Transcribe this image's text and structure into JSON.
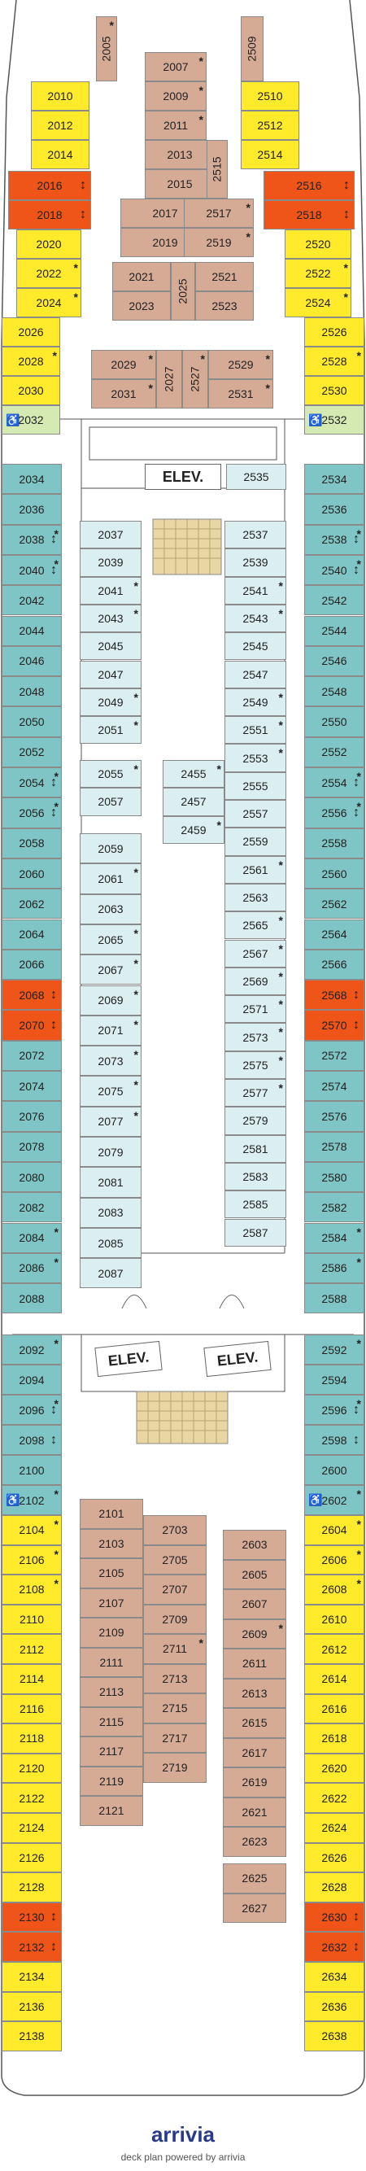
{
  "brand": {
    "name": "arrivia",
    "tagline": "deck plan powered by arrivia"
  },
  "elevators": [
    "ELEV.",
    "ELEV.",
    "ELEV."
  ],
  "cabins": [
    {
      "n": "2005",
      "c": "b",
      "s": 1,
      "r": 1
    },
    {
      "n": "2509",
      "c": "b",
      "r": 1
    },
    {
      "n": "2007",
      "c": "b",
      "s": 1
    },
    {
      "n": "2009",
      "c": "b",
      "s": 1
    },
    {
      "n": "2011",
      "c": "b",
      "s": 1
    },
    {
      "n": "2013",
      "c": "b",
      "s": 1
    },
    {
      "n": "2015",
      "c": "b",
      "s": 1
    },
    {
      "n": "2515",
      "c": "b",
      "r": 1
    },
    {
      "n": "2017",
      "c": "b",
      "s": 1
    },
    {
      "n": "2517",
      "c": "b",
      "s": 1
    },
    {
      "n": "2019",
      "c": "b",
      "s": 1
    },
    {
      "n": "2519",
      "c": "b",
      "s": 1
    },
    {
      "n": "2021",
      "c": "b"
    },
    {
      "n": "2521",
      "c": "b"
    },
    {
      "n": "2023",
      "c": "b"
    },
    {
      "n": "2523",
      "c": "b"
    },
    {
      "n": "2025",
      "c": "b",
      "r": 1
    },
    {
      "n": "2029",
      "c": "b",
      "s": 1
    },
    {
      "n": "2031",
      "c": "b",
      "s": 1
    },
    {
      "n": "2027",
      "c": "b",
      "r": 1
    },
    {
      "n": "2527",
      "c": "b",
      "s": 1,
      "r": 1
    },
    {
      "n": "2529",
      "c": "b",
      "s": 1
    },
    {
      "n": "2531",
      "c": "b",
      "s": 1
    },
    {
      "n": "2010",
      "c": "y"
    },
    {
      "n": "2012",
      "c": "y"
    },
    {
      "n": "2014",
      "c": "y"
    },
    {
      "n": "2016",
      "c": "o",
      "a": 1
    },
    {
      "n": "2018",
      "c": "o",
      "a": 1
    },
    {
      "n": "2020",
      "c": "y"
    },
    {
      "n": "2022",
      "c": "y",
      "s": 1
    },
    {
      "n": "2024",
      "c": "y",
      "s": 1
    },
    {
      "n": "2026",
      "c": "y"
    },
    {
      "n": "2028",
      "c": "y",
      "s": 1
    },
    {
      "n": "2030",
      "c": "y"
    },
    {
      "n": "2032",
      "c": "g",
      "h": 1
    },
    {
      "n": "2510",
      "c": "y"
    },
    {
      "n": "2512",
      "c": "y"
    },
    {
      "n": "2514",
      "c": "y"
    },
    {
      "n": "2516",
      "c": "o",
      "a": 1
    },
    {
      "n": "2518",
      "c": "o",
      "a": 1
    },
    {
      "n": "2520",
      "c": "y"
    },
    {
      "n": "2522",
      "c": "y",
      "s": 1
    },
    {
      "n": "2524",
      "c": "y",
      "s": 1
    },
    {
      "n": "2526",
      "c": "y"
    },
    {
      "n": "2528",
      "c": "y",
      "s": 1
    },
    {
      "n": "2530",
      "c": "y"
    },
    {
      "n": "2532",
      "c": "g",
      "h": 1
    },
    {
      "n": "2034",
      "c": "t"
    },
    {
      "n": "2036",
      "c": "t"
    },
    {
      "n": "2038",
      "c": "t",
      "s": 1,
      "a": 1
    },
    {
      "n": "2040",
      "c": "t",
      "s": 1,
      "a": 1
    },
    {
      "n": "2042",
      "c": "t"
    },
    {
      "n": "2044",
      "c": "t"
    },
    {
      "n": "2046",
      "c": "t"
    },
    {
      "n": "2048",
      "c": "t"
    },
    {
      "n": "2050",
      "c": "t"
    },
    {
      "n": "2052",
      "c": "t"
    },
    {
      "n": "2054",
      "c": "t",
      "s": 1,
      "a": 1
    },
    {
      "n": "2056",
      "c": "t",
      "s": 1,
      "a": 1
    },
    {
      "n": "2058",
      "c": "t"
    },
    {
      "n": "2060",
      "c": "t"
    },
    {
      "n": "2062",
      "c": "t"
    },
    {
      "n": "2064",
      "c": "t"
    },
    {
      "n": "2066",
      "c": "t"
    },
    {
      "n": "2068",
      "c": "o",
      "a": 1
    },
    {
      "n": "2070",
      "c": "o",
      "a": 1
    },
    {
      "n": "2072",
      "c": "t"
    },
    {
      "n": "2074",
      "c": "t"
    },
    {
      "n": "2076",
      "c": "t"
    },
    {
      "n": "2078",
      "c": "t"
    },
    {
      "n": "2080",
      "c": "t"
    },
    {
      "n": "2082",
      "c": "t"
    },
    {
      "n": "2084",
      "c": "t",
      "s": 1
    },
    {
      "n": "2086",
      "c": "t",
      "s": 1
    },
    {
      "n": "2088",
      "c": "t"
    },
    {
      "n": "2534",
      "c": "t"
    },
    {
      "n": "2536",
      "c": "t"
    },
    {
      "n": "2538",
      "c": "t",
      "s": 1,
      "a": 1
    },
    {
      "n": "2540",
      "c": "t",
      "s": 1,
      "a": 1
    },
    {
      "n": "2542",
      "c": "t"
    },
    {
      "n": "2544",
      "c": "t"
    },
    {
      "n": "2546",
      "c": "t"
    },
    {
      "n": "2548",
      "c": "t"
    },
    {
      "n": "2550",
      "c": "t"
    },
    {
      "n": "2552",
      "c": "t"
    },
    {
      "n": "2554",
      "c": "t",
      "s": 1,
      "a": 1
    },
    {
      "n": "2556",
      "c": "t",
      "s": 1,
      "a": 1
    },
    {
      "n": "2558",
      "c": "t"
    },
    {
      "n": "2560",
      "c": "t"
    },
    {
      "n": "2562",
      "c": "t"
    },
    {
      "n": "2564",
      "c": "t"
    },
    {
      "n": "2566",
      "c": "t"
    },
    {
      "n": "2568",
      "c": "o",
      "a": 1
    },
    {
      "n": "2570",
      "c": "o",
      "a": 1
    },
    {
      "n": "2572",
      "c": "t"
    },
    {
      "n": "2574",
      "c": "t"
    },
    {
      "n": "2576",
      "c": "t"
    },
    {
      "n": "2578",
      "c": "t"
    },
    {
      "n": "2580",
      "c": "t"
    },
    {
      "n": "2582",
      "c": "t"
    },
    {
      "n": "2584",
      "c": "t",
      "s": 1
    },
    {
      "n": "2586",
      "c": "t",
      "s": 1
    },
    {
      "n": "2588",
      "c": "t"
    },
    {
      "n": "2535",
      "c": "l"
    },
    {
      "n": "2037",
      "c": "l"
    },
    {
      "n": "2039",
      "c": "l"
    },
    {
      "n": "2041",
      "c": "l",
      "s": 1
    },
    {
      "n": "2043",
      "c": "l",
      "s": 1
    },
    {
      "n": "2045",
      "c": "l"
    },
    {
      "n": "2047",
      "c": "l"
    },
    {
      "n": "2049",
      "c": "l",
      "s": 1
    },
    {
      "n": "2051",
      "c": "l",
      "s": 1
    },
    {
      "n": "2055",
      "c": "l",
      "s": 1
    },
    {
      "n": "2057",
      "c": "l"
    },
    {
      "n": "2059",
      "c": "l"
    },
    {
      "n": "2061",
      "c": "l",
      "s": 1
    },
    {
      "n": "2063",
      "c": "l"
    },
    {
      "n": "2065",
      "c": "l",
      "s": 1
    },
    {
      "n": "2067",
      "c": "l",
      "s": 1
    },
    {
      "n": "2069",
      "c": "l",
      "s": 1
    },
    {
      "n": "2071",
      "c": "l",
      "s": 1
    },
    {
      "n": "2073",
      "c": "l",
      "s": 1
    },
    {
      "n": "2075",
      "c": "l",
      "s": 1
    },
    {
      "n": "2077",
      "c": "l",
      "s": 1
    },
    {
      "n": "2079",
      "c": "l"
    },
    {
      "n": "2081",
      "c": "l"
    },
    {
      "n": "2083",
      "c": "l"
    },
    {
      "n": "2085",
      "c": "l"
    },
    {
      "n": "2087",
      "c": "l"
    },
    {
      "n": "2537",
      "c": "l"
    },
    {
      "n": "2539",
      "c": "l"
    },
    {
      "n": "2541",
      "c": "l",
      "s": 1
    },
    {
      "n": "2543",
      "c": "l",
      "s": 1
    },
    {
      "n": "2545",
      "c": "l"
    },
    {
      "n": "2547",
      "c": "l"
    },
    {
      "n": "2549",
      "c": "l",
      "s": 1
    },
    {
      "n": "2551",
      "c": "l",
      "s": 1
    },
    {
      "n": "2553",
      "c": "l",
      "s": 1
    },
    {
      "n": "2555",
      "c": "l"
    },
    {
      "n": "2557",
      "c": "l"
    },
    {
      "n": "2559",
      "c": "l"
    },
    {
      "n": "2561",
      "c": "l",
      "s": 1
    },
    {
      "n": "2563",
      "c": "l"
    },
    {
      "n": "2565",
      "c": "l",
      "s": 1
    },
    {
      "n": "2567",
      "c": "l",
      "s": 1
    },
    {
      "n": "2569",
      "c": "l",
      "s": 1
    },
    {
      "n": "2571",
      "c": "l",
      "s": 1
    },
    {
      "n": "2573",
      "c": "l",
      "s": 1
    },
    {
      "n": "2575",
      "c": "l",
      "s": 1
    },
    {
      "n": "2577",
      "c": "l",
      "s": 1
    },
    {
      "n": "2579",
      "c": "l"
    },
    {
      "n": "2581",
      "c": "l"
    },
    {
      "n": "2583",
      "c": "l"
    },
    {
      "n": "2585",
      "c": "l"
    },
    {
      "n": "2587",
      "c": "l"
    },
    {
      "n": "2455",
      "c": "l",
      "s": 1
    },
    {
      "n": "2457",
      "c": "l"
    },
    {
      "n": "2459",
      "c": "l",
      "s": 1
    },
    {
      "n": "2092",
      "c": "t",
      "s": 1
    },
    {
      "n": "2094",
      "c": "t"
    },
    {
      "n": "2096",
      "c": "t",
      "s": 1,
      "a": 1
    },
    {
      "n": "2098",
      "c": "t",
      "a": 1
    },
    {
      "n": "2100",
      "c": "t"
    },
    {
      "n": "2102",
      "c": "t",
      "s": 1,
      "h": 1
    },
    {
      "n": "2592",
      "c": "t",
      "s": 1
    },
    {
      "n": "2594",
      "c": "t"
    },
    {
      "n": "2596",
      "c": "t",
      "s": 1,
      "a": 1
    },
    {
      "n": "2598",
      "c": "t",
      "a": 1
    },
    {
      "n": "2600",
      "c": "t"
    },
    {
      "n": "2602",
      "c": "t",
      "s": 1,
      "h": 1
    },
    {
      "n": "2104",
      "c": "y",
      "s": 1
    },
    {
      "n": "2106",
      "c": "y",
      "s": 1
    },
    {
      "n": "2108",
      "c": "y",
      "s": 1
    },
    {
      "n": "2110",
      "c": "y"
    },
    {
      "n": "2112",
      "c": "y"
    },
    {
      "n": "2114",
      "c": "y"
    },
    {
      "n": "2116",
      "c": "y"
    },
    {
      "n": "2118",
      "c": "y"
    },
    {
      "n": "2120",
      "c": "y"
    },
    {
      "n": "2122",
      "c": "y"
    },
    {
      "n": "2124",
      "c": "y"
    },
    {
      "n": "2126",
      "c": "y"
    },
    {
      "n": "2128",
      "c": "y"
    },
    {
      "n": "2130",
      "c": "o",
      "a": 1
    },
    {
      "n": "2132",
      "c": "o",
      "a": 1
    },
    {
      "n": "2134",
      "c": "y"
    },
    {
      "n": "2136",
      "c": "y"
    },
    {
      "n": "2138",
      "c": "y"
    },
    {
      "n": "2604",
      "c": "y",
      "s": 1
    },
    {
      "n": "2606",
      "c": "y",
      "s": 1
    },
    {
      "n": "2608",
      "c": "y",
      "s": 1
    },
    {
      "n": "2610",
      "c": "y"
    },
    {
      "n": "2612",
      "c": "y"
    },
    {
      "n": "2614",
      "c": "y"
    },
    {
      "n": "2616",
      "c": "y"
    },
    {
      "n": "2618",
      "c": "y"
    },
    {
      "n": "2620",
      "c": "y"
    },
    {
      "n": "2622",
      "c": "y"
    },
    {
      "n": "2624",
      "c": "y"
    },
    {
      "n": "2626",
      "c": "y"
    },
    {
      "n": "2628",
      "c": "y"
    },
    {
      "n": "2630",
      "c": "o",
      "a": 1
    },
    {
      "n": "2632",
      "c": "o",
      "a": 1
    },
    {
      "n": "2634",
      "c": "y"
    },
    {
      "n": "2636",
      "c": "y"
    },
    {
      "n": "2638",
      "c": "y"
    },
    {
      "n": "2101",
      "c": "b"
    },
    {
      "n": "2103",
      "c": "b"
    },
    {
      "n": "2105",
      "c": "b"
    },
    {
      "n": "2107",
      "c": "b"
    },
    {
      "n": "2109",
      "c": "b"
    },
    {
      "n": "2111",
      "c": "b"
    },
    {
      "n": "2113",
      "c": "b"
    },
    {
      "n": "2115",
      "c": "b"
    },
    {
      "n": "2117",
      "c": "b"
    },
    {
      "n": "2119",
      "c": "b"
    },
    {
      "n": "2121",
      "c": "b"
    },
    {
      "n": "2703",
      "c": "b"
    },
    {
      "n": "2705",
      "c": "b"
    },
    {
      "n": "2707",
      "c": "b"
    },
    {
      "n": "2709",
      "c": "b"
    },
    {
      "n": "2711",
      "c": "b",
      "s": 1
    },
    {
      "n": "2713",
      "c": "b"
    },
    {
      "n": "2715",
      "c": "b"
    },
    {
      "n": "2717",
      "c": "b"
    },
    {
      "n": "2719",
      "c": "b"
    },
    {
      "n": "2603",
      "c": "b"
    },
    {
      "n": "2605",
      "c": "b"
    },
    {
      "n": "2607",
      "c": "b"
    },
    {
      "n": "2609",
      "c": "b",
      "s": 1
    },
    {
      "n": "2611",
      "c": "b"
    },
    {
      "n": "2613",
      "c": "b"
    },
    {
      "n": "2615",
      "c": "b"
    },
    {
      "n": "2617",
      "c": "b"
    },
    {
      "n": "2619",
      "c": "b"
    },
    {
      "n": "2621",
      "c": "b"
    },
    {
      "n": "2623",
      "c": "b"
    },
    {
      "n": "2625",
      "c": "b"
    },
    {
      "n": "2627",
      "c": "b"
    }
  ]
}
